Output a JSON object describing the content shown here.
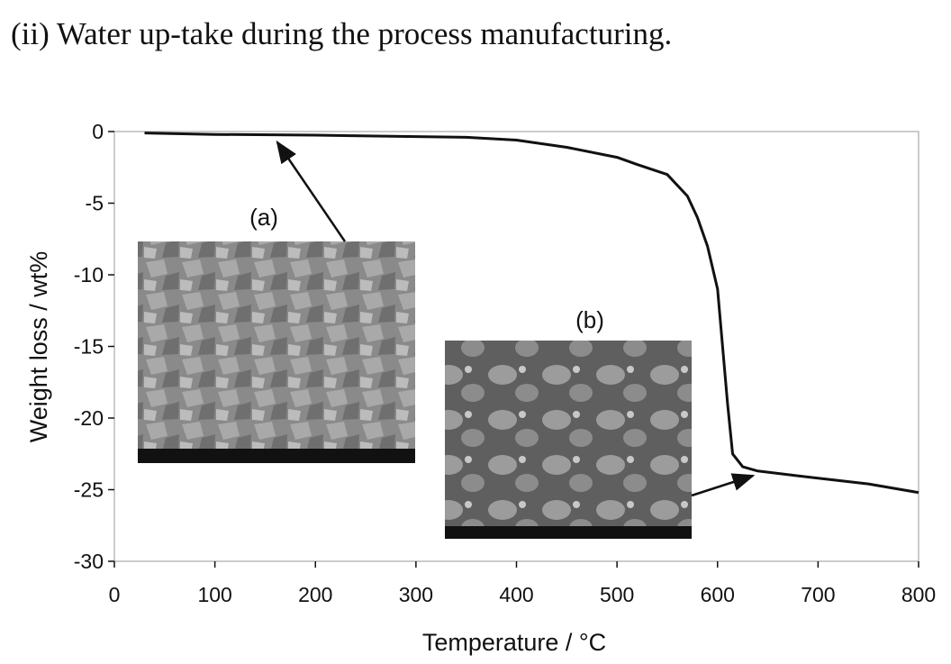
{
  "text": {
    "line": "(ii) Water up-take during the process manufacturing."
  },
  "chart_data": {
    "type": "line",
    "xlabel": "Temperature / °C",
    "ylabel": "Weight loss / wt%",
    "x": [
      30,
      100,
      200,
      300,
      350,
      400,
      450,
      500,
      520,
      550,
      570,
      580,
      590,
      600,
      610,
      615,
      625,
      640,
      700,
      750,
      800
    ],
    "values": [
      -0.1,
      -0.2,
      -0.25,
      -0.35,
      -0.4,
      -0.6,
      -1.1,
      -1.8,
      -2.3,
      -3,
      -4.5,
      -6,
      -8,
      -11,
      -19,
      -22.5,
      -23.4,
      -23.7,
      -24.2,
      -24.6,
      -25.2
    ],
    "color": "#111111",
    "xlim": [
      0,
      800
    ],
    "ylim": [
      -30,
      0
    ],
    "xticks": [
      0,
      100,
      200,
      300,
      400,
      500,
      600,
      700,
      800
    ],
    "yticks": [
      0,
      -5,
      -10,
      -15,
      -20,
      -25,
      -30
    ],
    "annotations": [
      "(a)",
      "(b)"
    ]
  }
}
